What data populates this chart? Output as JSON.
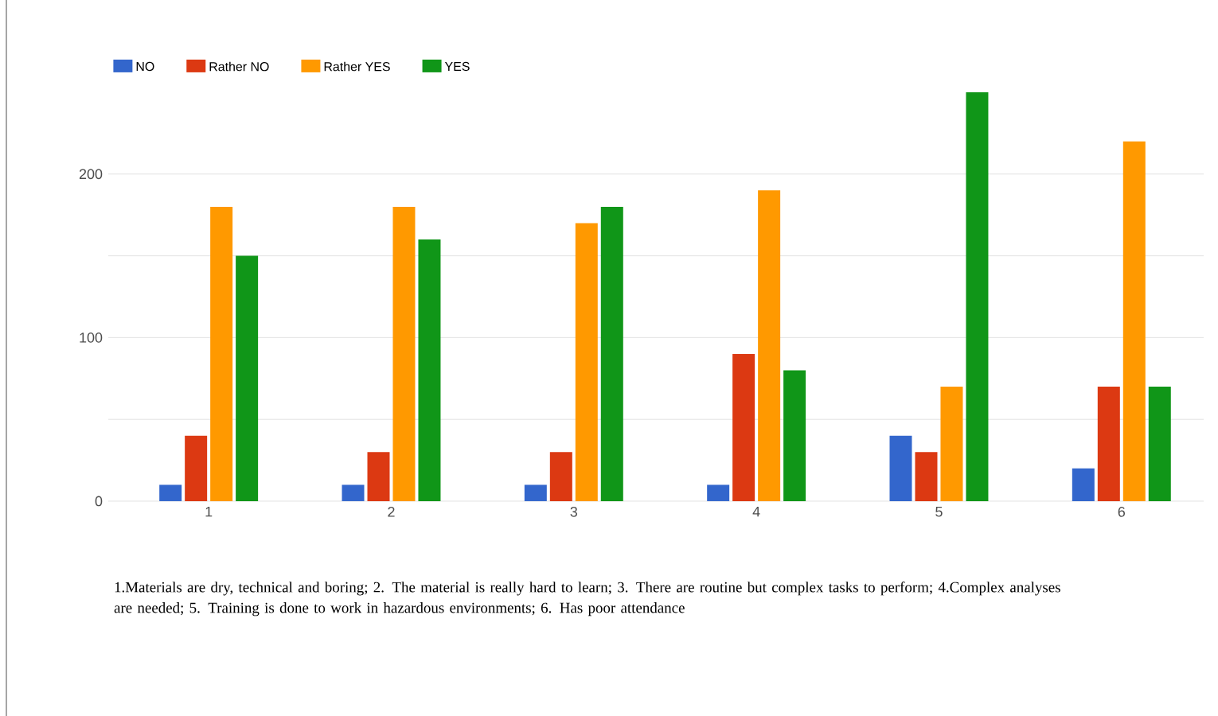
{
  "chart_data": {
    "type": "bar",
    "categories": [
      "1",
      "2",
      "3",
      "4",
      "5",
      "6"
    ],
    "series": [
      {
        "name": "NO",
        "color": "#3366cc",
        "values": [
          10,
          10,
          10,
          10,
          40,
          20
        ]
      },
      {
        "name": "Rather NO",
        "color": "#dc3912",
        "values": [
          40,
          30,
          30,
          90,
          30,
          70
        ]
      },
      {
        "name": "Rather YES",
        "color": "#ff9900",
        "values": [
          180,
          180,
          170,
          190,
          70,
          220
        ]
      },
      {
        "name": "YES",
        "color": "#109618",
        "values": [
          150,
          160,
          180,
          80,
          250,
          70
        ]
      }
    ],
    "ylim": [
      0,
      250
    ],
    "yticks": [
      0,
      {
        "value": 50,
        "label": null
      },
      100,
      {
        "value": 150,
        "label": null
      },
      200
    ],
    "grid": "y",
    "legend": "top left",
    "annotations": [
      "1.Materials are dry, technical and boring; 2. The material is really hard to learn; 3. There are routine but complex tasks to perform; 4.Complex analyses are needed; 5. Training is done to work in hazardous environments; 6. Has poor attendance"
    ]
  }
}
